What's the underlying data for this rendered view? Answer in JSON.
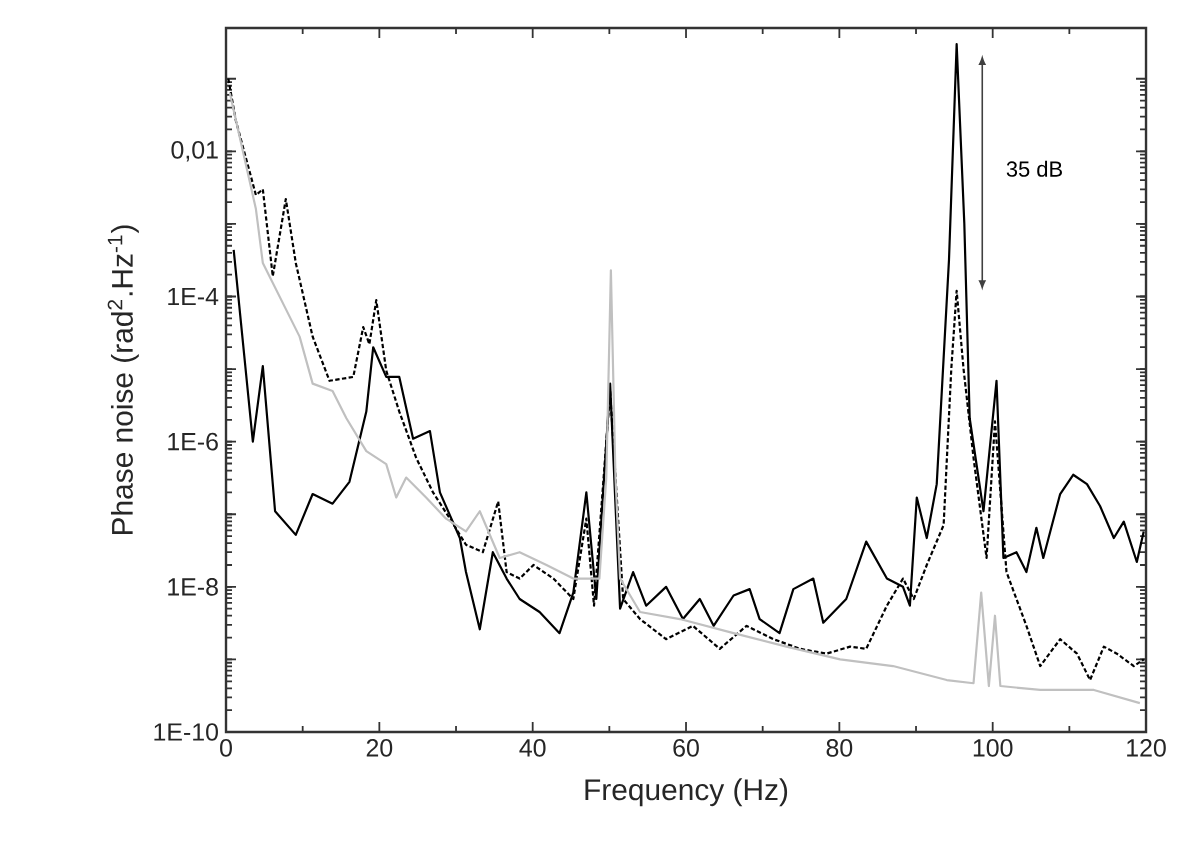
{
  "chart_data": {
    "type": "line",
    "xlabel": "Frequency (Hz)",
    "ylabel": "Phase noise (rad$^{2}$.Hz$^{-1}$)",
    "log": "y",
    "xlim": [
      0,
      120
    ],
    "xticks": [
      0,
      20,
      40,
      60,
      80,
      100,
      120
    ],
    "ylim": [
      1e-10,
      0.5
    ],
    "yticks": [
      {
        "value": 1e-10,
        "label": "1E-10"
      },
      {
        "value": 1e-09,
        "label": null
      },
      {
        "value": 1e-08,
        "label": "1E-8"
      },
      {
        "value": 1e-07,
        "label": null
      },
      {
        "value": 1e-06,
        "label": "1E-6"
      },
      {
        "value": 1e-05,
        "label": null
      },
      {
        "value": 0.0001,
        "label": "1E-4"
      },
      {
        "value": 0.001,
        "label": null
      },
      {
        "value": 0.01,
        "label": "0,01"
      },
      {
        "value": 0.1,
        "label": null
      }
    ],
    "annotations": [
      "35 dB"
    ],
    "series": [
      {
        "color": "#000000",
        "line_style": "solid",
        "x": [
          1,
          3.5,
          4.8,
          6.4,
          9.1,
          11.3,
          13.9,
          16.1,
          18.3,
          19.2,
          20.9,
          22.6,
          24.4,
          26.6,
          27.9,
          30.5,
          31.3,
          33.1,
          34.8,
          36.6,
          38.3,
          40.9,
          43.5,
          45.3,
          47,
          48.3,
          50.1,
          51.4,
          53.1,
          54.8,
          57.4,
          59.6,
          61.8,
          63.6,
          66.2,
          68.3,
          69.6,
          72.2,
          74,
          76.6,
          77.9,
          80.9,
          83.5,
          86.2,
          88.3,
          89.2,
          90.1,
          91.4,
          92.7,
          94.3,
          95.3,
          96.3,
          97,
          98.8,
          100.5,
          101.4,
          103.1,
          104.4,
          105.7,
          106.6,
          108.8,
          110.5,
          112.3,
          114,
          115.8,
          117.1,
          118.8,
          119.7
        ],
        "values": [
          0.00044,
          1e-06,
          1.1e-05,
          1.1e-07,
          5.2e-08,
          1.9e-07,
          1.4e-07,
          2.8e-07,
          2.6e-06,
          2e-05,
          7.8e-06,
          7.8e-06,
          1.1e-06,
          1.4e-06,
          2e-07,
          4.7e-08,
          1.6e-08,
          2.6e-09,
          3e-08,
          1.3e-08,
          6.8e-09,
          4.5e-09,
          2.3e-09,
          8.3e-09,
          2e-07,
          6.8e-09,
          6.3e-06,
          5e-09,
          1.6e-08,
          5.5e-09,
          1e-08,
          3.6e-09,
          6.8e-09,
          2.9e-09,
          7.6e-09,
          9.3e-09,
          3.6e-09,
          2.3e-09,
          9.3e-09,
          1.3e-08,
          3.2e-09,
          6.8e-09,
          4.2e-08,
          1.3e-08,
          1e-08,
          5.5e-09,
          1.7e-07,
          4.7e-08,
          2.6e-07,
          0.00032,
          0.3,
          0.001,
          2.1e-06,
          1.1e-07,
          6.9e-06,
          2.5e-08,
          3e-08,
          1.6e-08,
          6.5e-08,
          2.5e-08,
          1.9e-07,
          3.5e-07,
          2.6e-07,
          1.3e-07,
          4.7e-08,
          7.9e-08,
          2.2e-08,
          5.8e-08
        ]
      },
      {
        "color": "#000000",
        "line_style": "dashed",
        "x": [
          0.3,
          1.3,
          3.9,
          4.8,
          6.1,
          7.8,
          9.1,
          11.3,
          13.5,
          16.6,
          17.9,
          18.7,
          19.6,
          20.9,
          22.6,
          24.8,
          27,
          29.2,
          31.3,
          33.5,
          35.5,
          36.6,
          38.3,
          40.1,
          42.7,
          45.3,
          47,
          48,
          50.1,
          51.8,
          54,
          57.4,
          60.9,
          64.4,
          67.9,
          71.4,
          74.9,
          78.3,
          81.4,
          83.5,
          86.2,
          88.3,
          89.7,
          91.4,
          93.6,
          94.6,
          95.3,
          96.2,
          97.5,
          99.2,
          100.3,
          101.8,
          104.4,
          106.2,
          108.8,
          111,
          112.7,
          114.5,
          116.2,
          118.4,
          119.7
        ],
        "values": [
          0.1,
          0.026,
          0.0025,
          0.003,
          0.00019,
          0.0022,
          0.00029,
          2.8e-05,
          6.9e-06,
          7.8e-06,
          3.8e-05,
          2.2e-05,
          8.9e-05,
          9.5e-06,
          2.6e-06,
          6e-07,
          2e-07,
          8.7e-08,
          3.8e-08,
          3e-08,
          1.5e-07,
          1.6e-08,
          1.3e-08,
          2e-08,
          1.3e-08,
          6.8e-09,
          8.7e-08,
          5.5e-09,
          5e-06,
          6.8e-09,
          3.6e-09,
          1.9e-09,
          2.9e-09,
          1.4e-09,
          2.9e-09,
          1.9e-09,
          1.4e-09,
          1.2e-09,
          1.5e-09,
          1.4e-09,
          5.5e-09,
          1.3e-08,
          6.8e-09,
          2e-08,
          7.1e-08,
          1e-05,
          0.00012,
          1e-05,
          6e-07,
          2.5e-08,
          1.9e-06,
          1.6e-08,
          2.9e-09,
          8.1e-10,
          1.9e-09,
          1.2e-09,
          5.2e-10,
          1.5e-09,
          1.2e-09,
          8.1e-10,
          1e-09
        ]
      },
      {
        "color": "#c0c0c0",
        "line_style": "solid",
        "x": [
          0.5,
          3.9,
          4.8,
          9.6,
          11.3,
          13.9,
          15.7,
          18.3,
          20.9,
          22.2,
          23.5,
          26.1,
          28.7,
          31.3,
          33.1,
          35.7,
          38.3,
          41.8,
          45.3,
          48.7,
          49.6,
          50.2,
          50.8,
          51.4,
          54,
          59.2,
          66.2,
          73.1,
          80.1,
          87,
          94,
          97.5,
          98.5,
          99.5,
          100.3,
          101,
          106.2,
          113.2,
          119.2
        ],
        "values": [
          0.063,
          0.0016,
          0.00029,
          2.8e-05,
          6.3e-06,
          5e-06,
          2.1e-06,
          7.4e-07,
          4.9e-07,
          1.7e-07,
          3.2e-07,
          1.7e-07,
          8.7e-08,
          5.8e-08,
          1.1e-07,
          2.5e-08,
          3e-08,
          2e-08,
          1.3e-08,
          1.3e-08,
          3.2e-07,
          0.00023,
          3.2e-07,
          1.3e-08,
          4.5e-09,
          3.6e-09,
          2.3e-09,
          1.5e-09,
          1e-09,
          8.1e-10,
          5.2e-10,
          4.7e-10,
          8.3e-09,
          4.3e-10,
          4e-09,
          4.3e-10,
          3.8e-10,
          3.8e-10,
          2.5e-10
        ]
      }
    ]
  }
}
